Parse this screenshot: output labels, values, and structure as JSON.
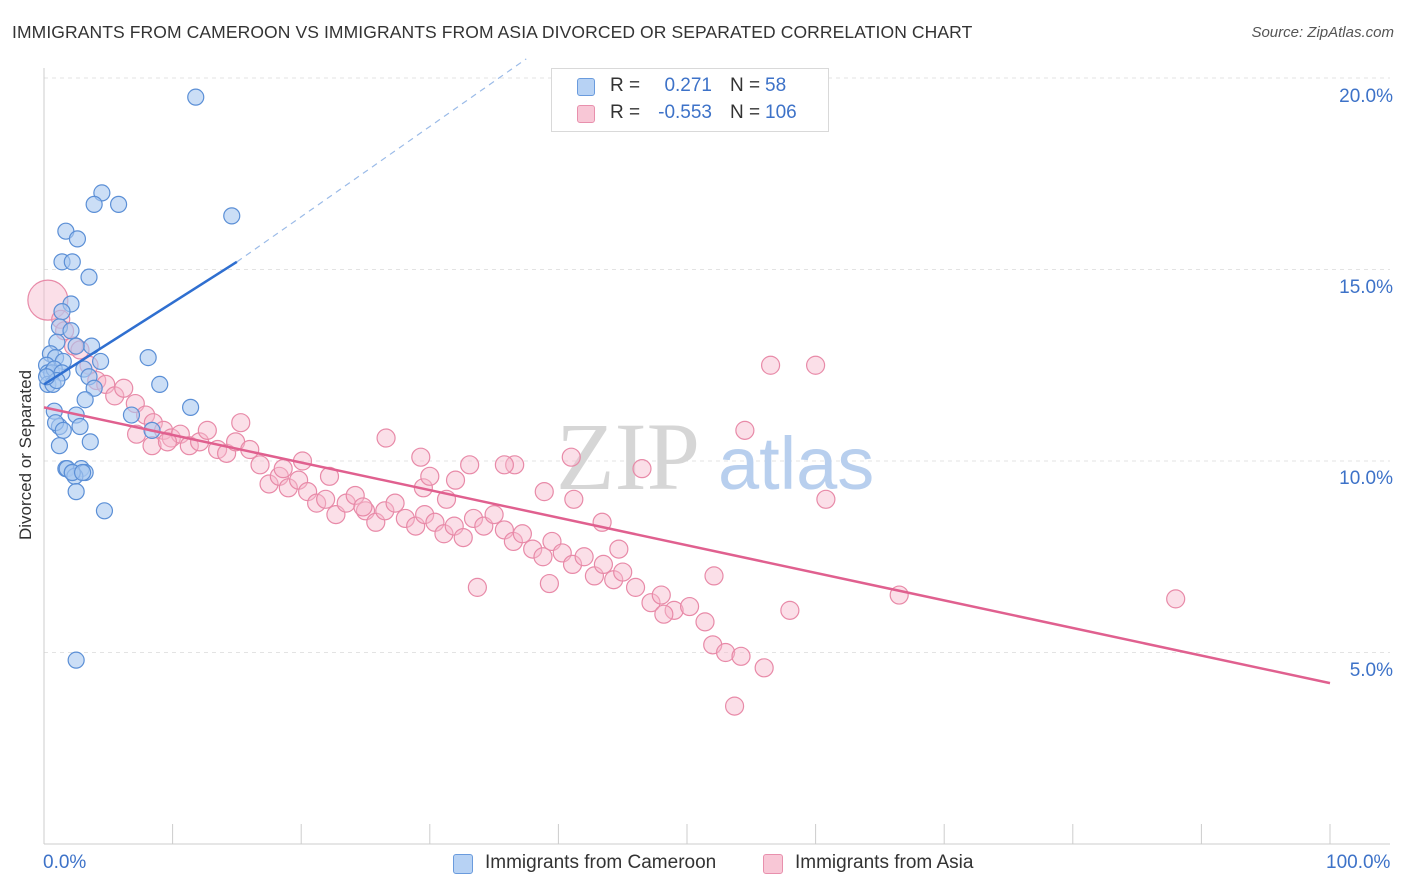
{
  "title": "IMMIGRANTS FROM CAMEROON VS IMMIGRANTS FROM ASIA DIVORCED OR SEPARATED CORRELATION CHART",
  "source": "Source: ZipAtlas.com",
  "watermark": {
    "zip": "ZIP",
    "atlas": "atlas"
  },
  "legend_box": {
    "rows": [
      {
        "r_label": "R =",
        "r_value": "0.271",
        "n_label": "N =",
        "n_value": "58"
      },
      {
        "r_label": "R =",
        "r_value": "-0.553",
        "n_label": "N =",
        "n_value": "106"
      }
    ]
  },
  "bottom_legend": [
    "Immigrants from Cameroon",
    "Immigrants from Asia"
  ],
  "y_axis_label": "Divorced or Separated",
  "x_tick_labels": [
    "0.0%",
    "100.0%"
  ],
  "y_tick_labels": [
    "20.0%",
    "15.0%",
    "10.0%",
    "5.0%"
  ],
  "colors": {
    "cameroon_fill": "#a8c8f0",
    "cameroon_stroke": "#5b8fd6",
    "cameroon_line": "#2f6fd0",
    "asia_fill": "#f6b8cc",
    "asia_stroke": "#e88aa8",
    "asia_line": "#e0608f",
    "tick_label": "#3d72c8",
    "grid": "#e3e3e3"
  },
  "chart_data": {
    "type": "scatter",
    "title": "IMMIGRANTS FROM CAMEROON VS IMMIGRANTS FROM ASIA DIVORCED OR SEPARATED CORRELATION CHART",
    "xlabel": "",
    "ylabel": "Divorced or Separated",
    "xlim": [
      0,
      100
    ],
    "ylim": [
      0,
      21
    ],
    "y_ticks": [
      5,
      10,
      15,
      20
    ],
    "grid": true,
    "legend_placement": "bottom",
    "series": [
      {
        "name": "Immigrants from Cameroon",
        "r": 0.271,
        "n": 58,
        "trend": {
          "x": [
            0,
            15
          ],
          "y": [
            12.0,
            15.2
          ],
          "dashed_extension_to": [
            37.5,
            20.5
          ]
        },
        "points": [
          [
            11.8,
            19.5
          ],
          [
            4.5,
            17.0
          ],
          [
            3.9,
            16.7
          ],
          [
            5.8,
            16.7
          ],
          [
            14.6,
            16.4
          ],
          [
            1.7,
            16.0
          ],
          [
            2.6,
            15.8
          ],
          [
            1.4,
            15.2
          ],
          [
            2.2,
            15.2
          ],
          [
            3.5,
            14.8
          ],
          [
            2.1,
            14.1
          ],
          [
            1.4,
            13.9
          ],
          [
            1.2,
            13.5
          ],
          [
            2.1,
            13.4
          ],
          [
            1.0,
            13.1
          ],
          [
            3.7,
            13.0
          ],
          [
            2.5,
            13.0
          ],
          [
            0.5,
            12.8
          ],
          [
            0.9,
            12.7
          ],
          [
            1.5,
            12.6
          ],
          [
            0.2,
            12.5
          ],
          [
            0.3,
            12.3
          ],
          [
            0.6,
            12.3
          ],
          [
            0.8,
            12.4
          ],
          [
            1.4,
            12.3
          ],
          [
            3.1,
            12.4
          ],
          [
            0.3,
            12.0
          ],
          [
            0.7,
            12.0
          ],
          [
            1.0,
            12.1
          ],
          [
            0.2,
            12.2
          ],
          [
            4.4,
            12.6
          ],
          [
            8.1,
            12.7
          ],
          [
            3.5,
            12.2
          ],
          [
            3.9,
            11.9
          ],
          [
            9.0,
            12.0
          ],
          [
            3.2,
            11.6
          ],
          [
            11.4,
            11.4
          ],
          [
            6.8,
            11.2
          ],
          [
            0.8,
            11.3
          ],
          [
            2.5,
            11.2
          ],
          [
            1.2,
            10.9
          ],
          [
            0.9,
            11.0
          ],
          [
            1.5,
            10.8
          ],
          [
            2.8,
            10.9
          ],
          [
            8.4,
            10.8
          ],
          [
            1.2,
            10.4
          ],
          [
            3.6,
            10.5
          ],
          [
            1.7,
            9.8
          ],
          [
            1.8,
            9.8
          ],
          [
            2.2,
            9.7
          ],
          [
            2.9,
            9.8
          ],
          [
            3.2,
            9.7
          ],
          [
            2.4,
            9.6
          ],
          [
            2.5,
            9.2
          ],
          [
            4.7,
            8.7
          ],
          [
            2.5,
            4.8
          ],
          [
            2.2,
            9.7
          ],
          [
            3.0,
            9.7
          ]
        ]
      },
      {
        "name": "Immigrants from Asia",
        "r": -0.553,
        "n": 106,
        "trend": {
          "x": [
            0,
            100
          ],
          "y": [
            11.4,
            4.2
          ]
        },
        "points": [
          [
            0.3,
            14.2
          ],
          [
            1.3,
            13.7
          ],
          [
            1.6,
            13.4
          ],
          [
            2.3,
            13.0
          ],
          [
            2.8,
            12.9
          ],
          [
            3.5,
            12.5
          ],
          [
            4.1,
            12.1
          ],
          [
            4.8,
            12.0
          ],
          [
            5.5,
            11.7
          ],
          [
            6.2,
            11.9
          ],
          [
            7.1,
            11.5
          ],
          [
            7.9,
            11.2
          ],
          [
            8.5,
            11.0
          ],
          [
            9.3,
            10.8
          ],
          [
            9.9,
            10.6
          ],
          [
            10.6,
            10.7
          ],
          [
            11.3,
            10.4
          ],
          [
            12.1,
            10.5
          ],
          [
            12.7,
            10.8
          ],
          [
            13.5,
            10.3
          ],
          [
            14.2,
            10.2
          ],
          [
            14.9,
            10.5
          ],
          [
            7.2,
            10.7
          ],
          [
            8.4,
            10.4
          ],
          [
            9.6,
            10.5
          ],
          [
            16.0,
            10.3
          ],
          [
            16.8,
            9.9
          ],
          [
            17.5,
            9.4
          ],
          [
            18.3,
            9.6
          ],
          [
            19.0,
            9.3
          ],
          [
            19.8,
            9.5
          ],
          [
            20.5,
            9.2
          ],
          [
            21.2,
            8.9
          ],
          [
            21.9,
            9.0
          ],
          [
            22.7,
            8.6
          ],
          [
            23.5,
            8.9
          ],
          [
            24.2,
            9.1
          ],
          [
            25.0,
            8.7
          ],
          [
            25.8,
            8.4
          ],
          [
            26.5,
            8.7
          ],
          [
            27.3,
            8.9
          ],
          [
            28.1,
            8.5
          ],
          [
            28.9,
            8.3
          ],
          [
            29.6,
            8.6
          ],
          [
            30.4,
            8.4
          ],
          [
            31.1,
            8.1
          ],
          [
            31.9,
            8.3
          ],
          [
            32.6,
            8.0
          ],
          [
            33.4,
            8.5
          ],
          [
            34.2,
            8.3
          ],
          [
            35.0,
            8.6
          ],
          [
            35.8,
            8.2
          ],
          [
            36.5,
            7.9
          ],
          [
            37.2,
            8.1
          ],
          [
            38.0,
            7.7
          ],
          [
            38.8,
            7.5
          ],
          [
            39.5,
            7.9
          ],
          [
            40.3,
            7.6
          ],
          [
            41.1,
            7.3
          ],
          [
            42.0,
            7.5
          ],
          [
            42.8,
            7.0
          ],
          [
            43.5,
            7.3
          ],
          [
            44.3,
            6.9
          ],
          [
            45.0,
            7.1
          ],
          [
            46.0,
            6.7
          ],
          [
            47.2,
            6.3
          ],
          [
            48.0,
            6.5
          ],
          [
            49.0,
            6.1
          ],
          [
            50.2,
            6.2
          ],
          [
            51.4,
            5.8
          ],
          [
            52.0,
            5.2
          ],
          [
            53.0,
            5.0
          ],
          [
            54.2,
            4.9
          ],
          [
            56.0,
            4.6
          ],
          [
            58.0,
            6.1
          ],
          [
            56.5,
            12.5
          ],
          [
            60.0,
            12.5
          ],
          [
            54.5,
            10.8
          ],
          [
            60.8,
            9.0
          ],
          [
            66.5,
            6.5
          ],
          [
            88.0,
            6.4
          ],
          [
            53.7,
            3.6
          ],
          [
            41.0,
            10.1
          ],
          [
            46.5,
            9.8
          ],
          [
            36.6,
            9.9
          ],
          [
            35.8,
            9.9
          ],
          [
            29.3,
            10.1
          ],
          [
            26.6,
            10.6
          ],
          [
            29.5,
            9.3
          ],
          [
            31.3,
            9.0
          ],
          [
            41.2,
            9.0
          ],
          [
            30.0,
            9.6
          ],
          [
            32.0,
            9.5
          ],
          [
            33.1,
            9.9
          ],
          [
            44.7,
            7.7
          ],
          [
            43.4,
            8.4
          ],
          [
            24.8,
            8.8
          ],
          [
            20.1,
            10.0
          ],
          [
            15.3,
            11.0
          ],
          [
            18.6,
            9.8
          ],
          [
            22.2,
            9.6
          ],
          [
            38.9,
            9.2
          ],
          [
            48.2,
            6.0
          ],
          [
            52.1,
            7.0
          ],
          [
            33.7,
            6.7
          ],
          [
            39.3,
            6.8
          ]
        ]
      }
    ]
  }
}
